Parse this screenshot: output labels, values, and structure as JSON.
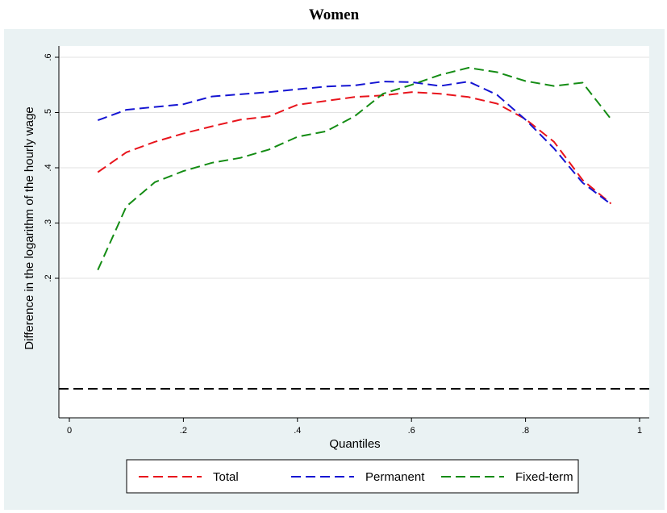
{
  "chart_data": {
    "type": "line",
    "title": "Women",
    "xlabel": "Quantiles",
    "ylabel": "Difference in the logarithm of the hourly wage",
    "xlim": [
      0,
      1
    ],
    "ylim": [
      0,
      0.6
    ],
    "x_ticks": [
      0,
      0.2,
      0.4,
      0.6,
      0.8,
      1
    ],
    "x_tick_labels": [
      "0",
      ".2",
      ".4",
      ".6",
      ".8",
      "1"
    ],
    "y_ticks": [
      0.2,
      0.3,
      0.4,
      0.5,
      0.6
    ],
    "y_tick_labels": [
      ".2",
      ".3",
      ".4",
      ".5",
      ".6"
    ],
    "grid": true,
    "legend_position": "bottom",
    "reference_line": {
      "y": 0,
      "color": "#000000",
      "style": "dashed"
    },
    "series": [
      {
        "name": "Total",
        "color": "#e8141c",
        "style": "dashed",
        "x": [
          0.05,
          0.1,
          0.15,
          0.2,
          0.25,
          0.3,
          0.35,
          0.4,
          0.45,
          0.5,
          0.55,
          0.6,
          0.65,
          0.7,
          0.75,
          0.8,
          0.85,
          0.9,
          0.95
        ],
        "y": [
          0.392,
          0.428,
          0.447,
          0.462,
          0.475,
          0.487,
          0.493,
          0.514,
          0.521,
          0.528,
          0.531,
          0.537,
          0.534,
          0.528,
          0.516,
          0.488,
          0.447,
          0.378,
          0.335
        ]
      },
      {
        "name": "Permanent",
        "color": "#1414d2",
        "style": "dashed",
        "x": [
          0.05,
          0.1,
          0.15,
          0.2,
          0.25,
          0.3,
          0.35,
          0.4,
          0.45,
          0.5,
          0.55,
          0.6,
          0.65,
          0.7,
          0.75,
          0.8,
          0.85,
          0.9,
          0.95
        ],
        "y": [
          0.486,
          0.505,
          0.51,
          0.515,
          0.529,
          0.533,
          0.537,
          0.542,
          0.547,
          0.549,
          0.556,
          0.555,
          0.548,
          0.556,
          0.532,
          0.487,
          0.435,
          0.373,
          0.334
        ]
      },
      {
        "name": "Fixed-term",
        "color": "#148c14",
        "style": "dashed",
        "x": [
          0.05,
          0.1,
          0.15,
          0.2,
          0.25,
          0.3,
          0.35,
          0.4,
          0.45,
          0.5,
          0.55,
          0.6,
          0.65,
          0.7,
          0.75,
          0.8,
          0.85,
          0.9,
          0.95
        ],
        "y": [
          0.215,
          0.33,
          0.374,
          0.394,
          0.409,
          0.418,
          0.433,
          0.456,
          0.466,
          0.493,
          0.534,
          0.55,
          0.568,
          0.581,
          0.573,
          0.557,
          0.548,
          0.554,
          0.488
        ]
      }
    ]
  }
}
